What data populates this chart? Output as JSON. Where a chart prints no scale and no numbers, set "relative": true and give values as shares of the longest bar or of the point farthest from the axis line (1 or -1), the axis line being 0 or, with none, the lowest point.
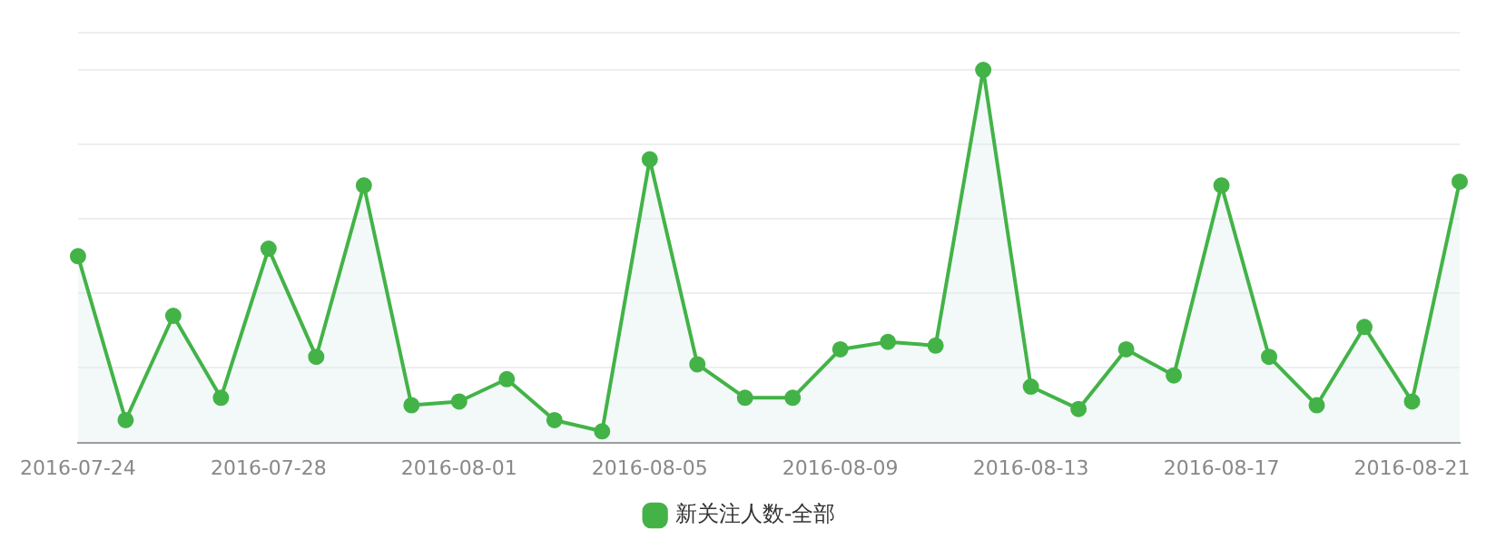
{
  "chart_data": {
    "type": "area",
    "relative": true,
    "categories": [
      "2016-07-24",
      null,
      null,
      null,
      "2016-07-28",
      null,
      null,
      null,
      "2016-08-01",
      null,
      null,
      null,
      "2016-08-05",
      null,
      null,
      null,
      "2016-08-09",
      null,
      null,
      null,
      "2016-08-13",
      null,
      null,
      null,
      "2016-08-17",
      null,
      null,
      null,
      "2016-08-21",
      null
    ],
    "series": [
      {
        "name": "新关注人数-全部",
        "color": "#43b348",
        "values": [
          0.5,
          0.06,
          0.34,
          0.12,
          0.52,
          0.23,
          0.69,
          0.1,
          0.11,
          0.17,
          0.06,
          0.03,
          0.76,
          0.21,
          0.12,
          0.12,
          0.25,
          0.27,
          0.26,
          1,
          0.15,
          0.09,
          0.25,
          0.18,
          0.69,
          0.23,
          0.1,
          0.31,
          0.11,
          0.7
        ]
      }
    ],
    "grid": "y",
    "legend": "bottom",
    "marker": "circle",
    "line_style": "solid"
  }
}
